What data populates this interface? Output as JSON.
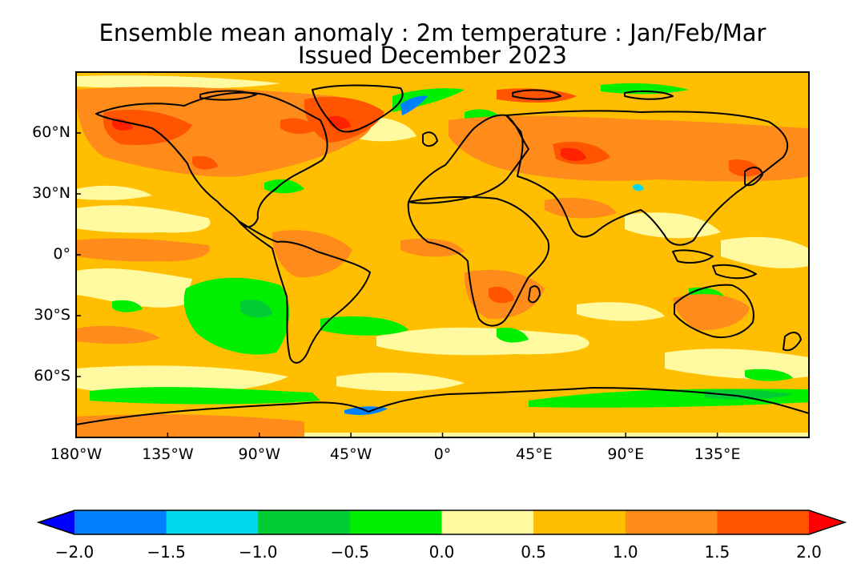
{
  "title": {
    "line1": "Ensemble mean anomaly : 2m temperature : Jan/Feb/Mar",
    "line2": "Issued December 2023"
  },
  "map": {
    "projection": "equirectangular",
    "lon_range": [
      -180,
      180
    ],
    "lat_range": [
      -90,
      90
    ],
    "background_anomaly": "0.5 to 1.0"
  },
  "axes": {
    "y_ticks": [
      {
        "lat": 60,
        "label": "60°N"
      },
      {
        "lat": 30,
        "label": "30°N"
      },
      {
        "lat": 0,
        "label": "0°"
      },
      {
        "lat": -30,
        "label": "30°S"
      },
      {
        "lat": -60,
        "label": "60°S"
      }
    ],
    "x_ticks": [
      {
        "lon": -180,
        "label": "180°W"
      },
      {
        "lon": -135,
        "label": "135°W"
      },
      {
        "lon": -90,
        "label": "90°W"
      },
      {
        "lon": -45,
        "label": "45°W"
      },
      {
        "lon": 0,
        "label": "0°"
      },
      {
        "lon": 45,
        "label": "45°E"
      },
      {
        "lon": 90,
        "label": "90°E"
      },
      {
        "lon": 135,
        "label": "135°E"
      }
    ]
  },
  "colorbar": {
    "extend": "both",
    "labels": [
      "−2.0",
      "−1.5",
      "−1.0",
      "−0.5",
      "0.0",
      "0.5",
      "1.0",
      "1.5",
      "2.0"
    ],
    "low_color": "#0000ff",
    "high_color": "#ff0000",
    "bins": [
      {
        "range": [
          -2.0,
          -1.5
        ],
        "color": "#0080ff"
      },
      {
        "range": [
          -1.5,
          -1.0
        ],
        "color": "#00d8ee"
      },
      {
        "range": [
          -1.0,
          -0.5
        ],
        "color": "#00cc33"
      },
      {
        "range": [
          -0.5,
          0.0
        ],
        "color": "#00ee00"
      },
      {
        "range": [
          0.0,
          0.5
        ],
        "color": "#fffaa0"
      },
      {
        "range": [
          0.5,
          1.0
        ],
        "color": "#ffbf00"
      },
      {
        "range": [
          1.0,
          1.5
        ],
        "color": "#ff8c1a"
      },
      {
        "range": [
          1.5,
          2.0
        ],
        "color": "#ff5500"
      }
    ]
  }
}
